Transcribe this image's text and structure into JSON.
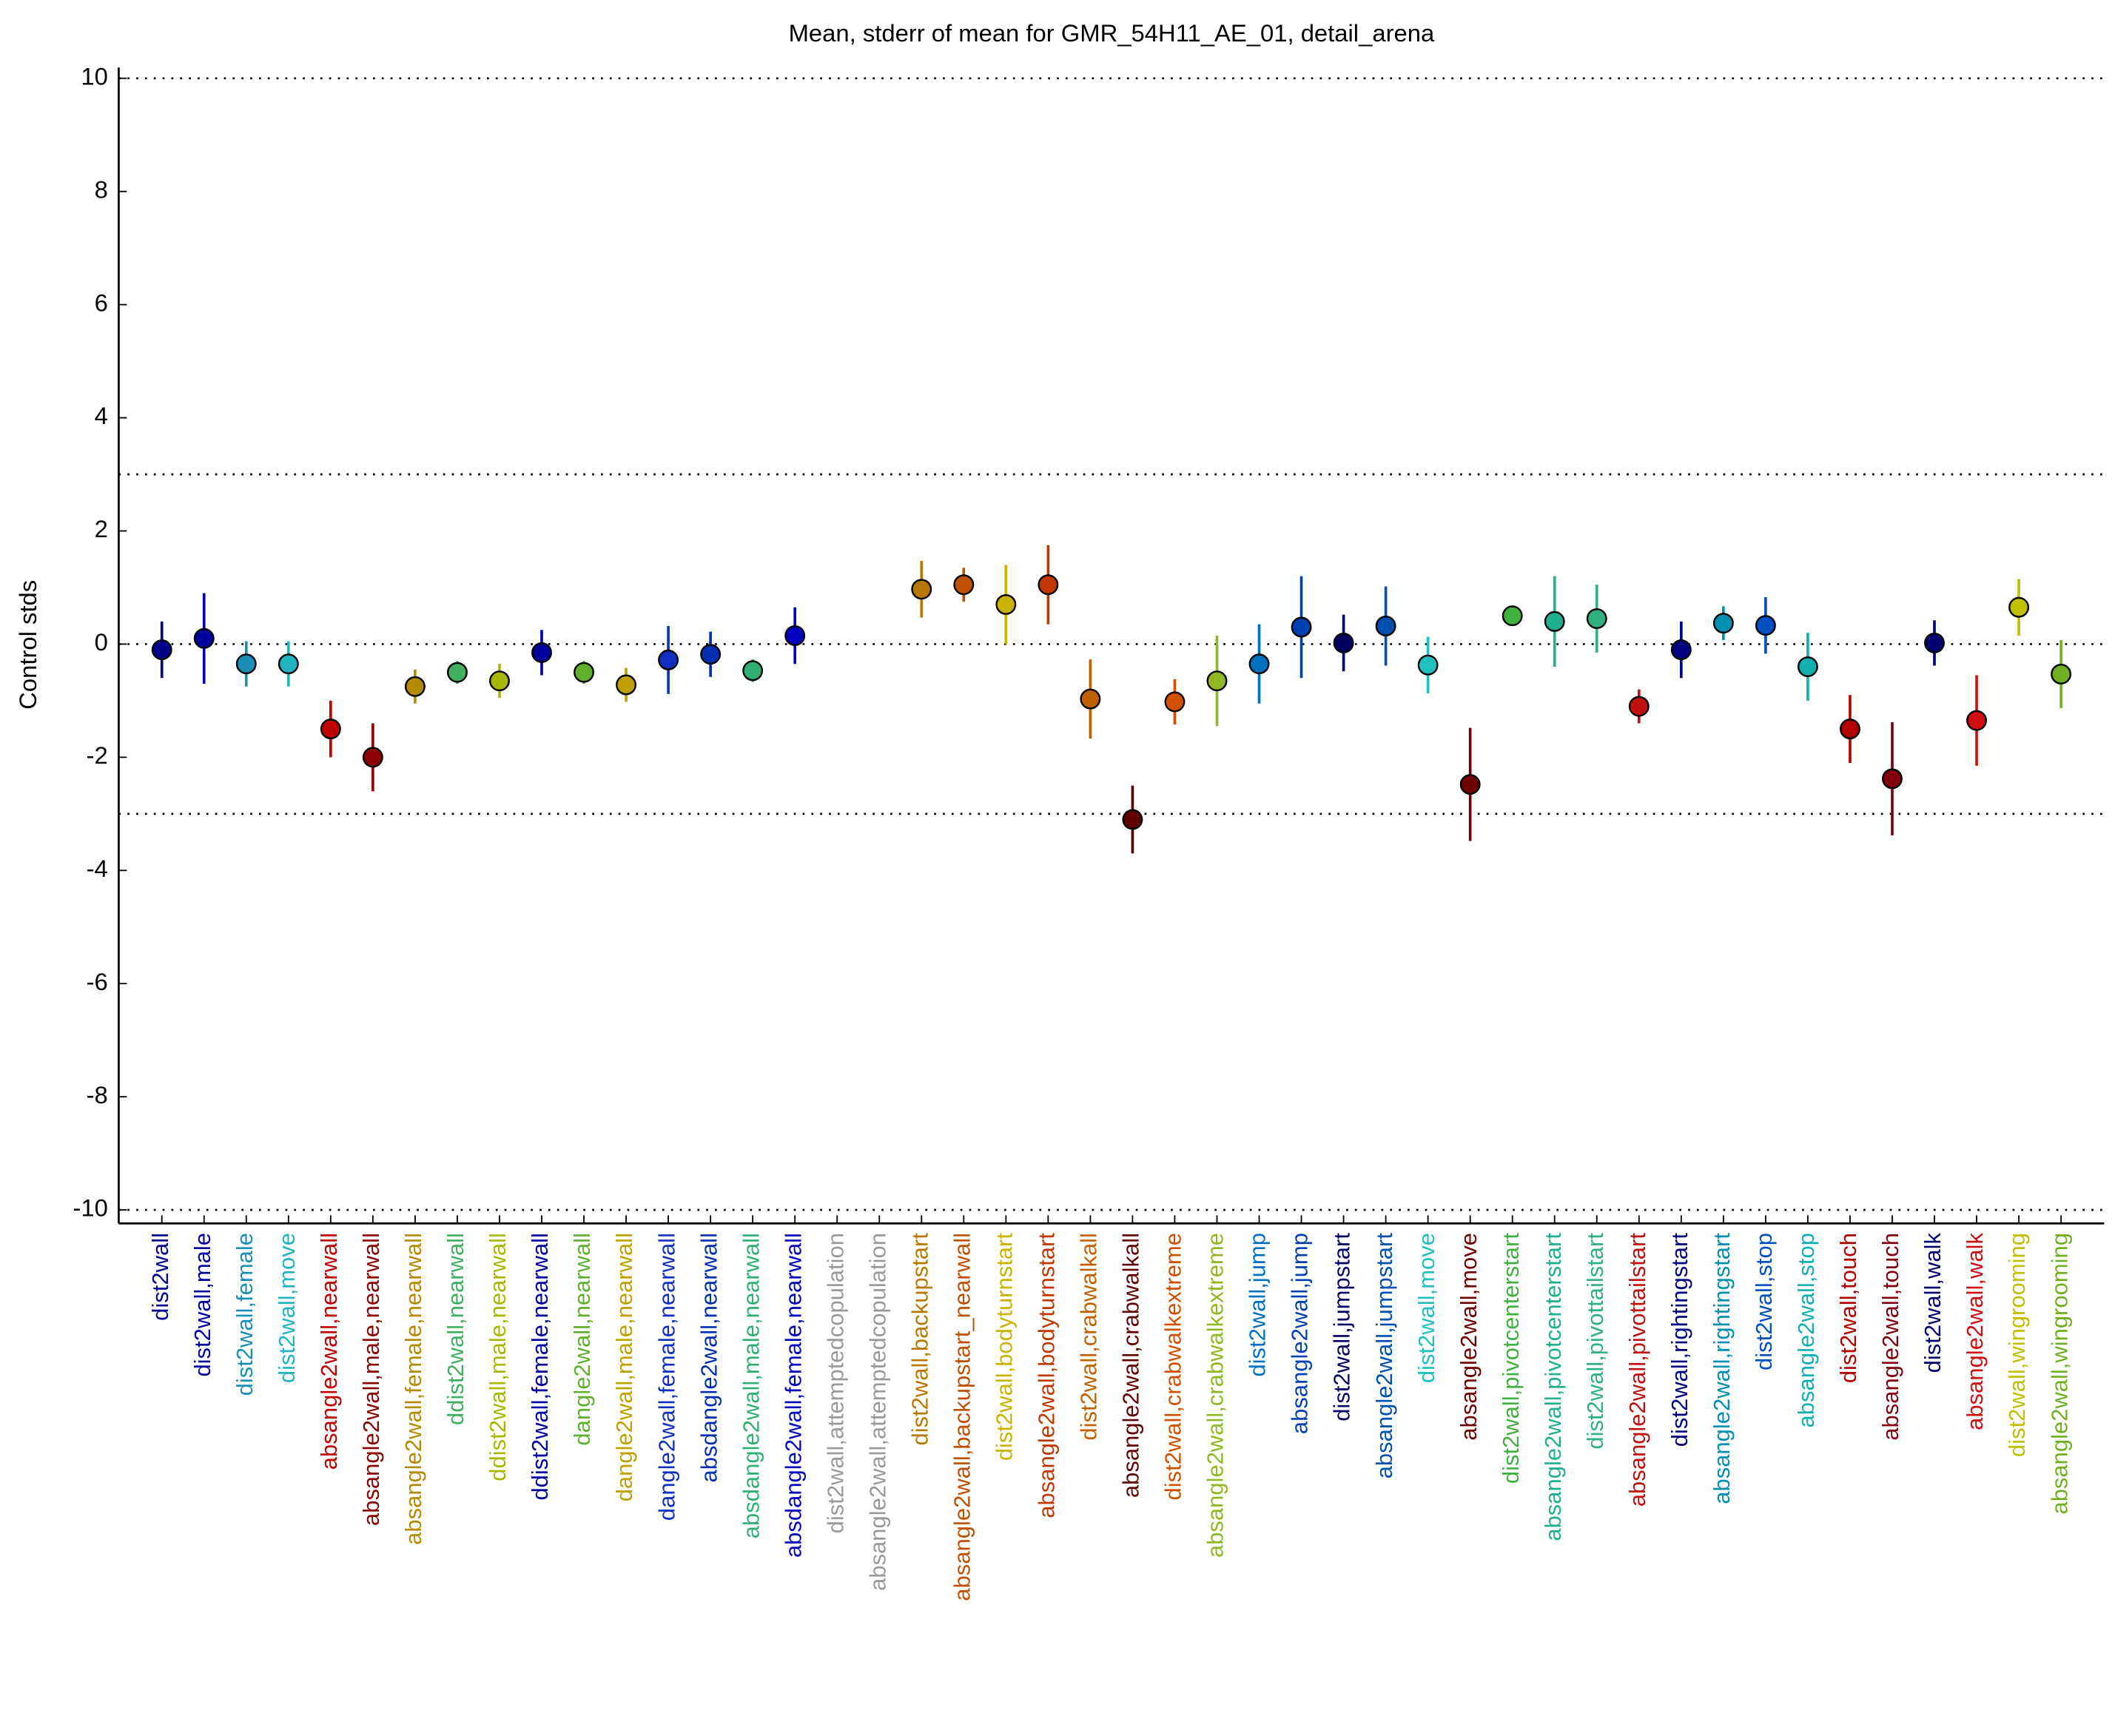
{
  "chart_data": {
    "type": "errorbar",
    "title": "Mean, stderr of mean for GMR_54H11_AE_01, detail_arena",
    "ylabel": "Control stds",
    "categories": [
      "dist2wall",
      "dist2wall,male",
      "dist2wall,female",
      "dist2wall,move",
      "absangle2wall,nearwall",
      "absangle2wall,male,nearwall",
      "absangle2wall,female,nearwall",
      "ddist2wall,nearwall",
      "ddist2wall,male,nearwall",
      "ddist2wall,female,nearwall",
      "dangle2wall,nearwall",
      "dangle2wall,male,nearwall",
      "dangle2wall,female,nearwall",
      "absdangle2wall,nearwall",
      "absdangle2wall,male,nearwall",
      "absdangle2wall,female,nearwall",
      "dist2wall,attemptedcopulation",
      "absangle2wall,attemptedcopulation",
      "dist2wall,backupstart",
      "absangle2wall,backupstart_nearwall",
      "dist2wall,bodyturnstart",
      "absangle2wall,bodyturnstart",
      "dist2wall,crabwalkall",
      "absangle2wall,crabwalkall",
      "dist2wall,crabwalkextreme",
      "absangle2wall,crabwalkextreme",
      "dist2wall,jump",
      "absangle2wall,jump",
      "dist2wall,jumpstart",
      "absangle2wall,jumpstart",
      "dist2wall,move",
      "absangle2wall,move",
      "dist2wall,pivotcenterstart",
      "absangle2wall,pivotcenterstart",
      "dist2wall,pivottailstart",
      "absangle2wall,pivottailstart",
      "dist2wall,rightingstart",
      "absangle2wall,rightingstart",
      "dist2wall,stop",
      "absangle2wall,stop",
      "dist2wall,touch",
      "absangle2wall,touch",
      "dist2wall,walk",
      "absangle2wall,walk",
      "dist2wall,wingrooming",
      "absangle2wall,wingrooming"
    ],
    "values": [
      -0.1,
      0.1,
      -0.35,
      -0.35,
      -1.5,
      -2.0,
      -0.75,
      -0.5,
      -0.65,
      -0.15,
      -0.5,
      -0.72,
      -0.28,
      -0.18,
      -0.47,
      0.15,
      null,
      null,
      0.97,
      1.05,
      0.7,
      1.05,
      -0.97,
      -3.1,
      -1.02,
      -0.65,
      -0.35,
      0.3,
      0.02,
      0.32,
      -0.37,
      -2.48,
      0.5,
      0.4,
      0.45,
      -1.1,
      -0.1,
      0.37,
      0.33,
      -0.4,
      -1.5,
      -2.38,
      0.02,
      -1.35,
      0.65,
      -0.53
    ],
    "errors": [
      0.5,
      0.8,
      0.4,
      0.4,
      0.5,
      0.6,
      0.3,
      0.2,
      0.3,
      0.4,
      0.2,
      0.3,
      0.6,
      0.4,
      0.2,
      0.5,
      null,
      null,
      0.5,
      0.3,
      0.7,
      0.7,
      0.7,
      0.6,
      0.4,
      0.8,
      0.7,
      0.9,
      0.5,
      0.7,
      0.5,
      1.0,
      0.1,
      0.8,
      0.6,
      0.3,
      0.5,
      0.3,
      0.5,
      0.6,
      0.6,
      1.0,
      0.4,
      0.8,
      0.5,
      0.6
    ],
    "colors": [
      "#00008f",
      "#00009f",
      "#1a8fb5",
      "#20b5c0",
      "#c00000",
      "#8b0000",
      "#b38a00",
      "#40b060",
      "#a8b800",
      "#0000a0",
      "#60b030",
      "#c0a000",
      "#1030c0",
      "#0030b0",
      "#30b070",
      "#0000c0",
      "#999999",
      "#999999",
      "#b87800",
      "#c05000",
      "#c8b400",
      "#c03800",
      "#c06000",
      "#600000",
      "#d05000",
      "#90b820",
      "#0070c0",
      "#0040b0",
      "#000060",
      "#0050b0",
      "#20c0c0",
      "#700000",
      "#40b040",
      "#20b090",
      "#30b080",
      "#c01010",
      "#000080",
      "#0090b0",
      "#0050c0",
      "#10b0b0",
      "#b00000",
      "#800010",
      "#000070",
      "#d01010",
      "#c0c000",
      "#70b020"
    ],
    "ylim": [
      -10,
      10
    ],
    "yticks": [
      -10,
      -8,
      -6,
      -4,
      -2,
      0,
      2,
      4,
      6,
      8,
      10
    ],
    "reference_lines": [
      10,
      3,
      0,
      -3,
      -10
    ]
  }
}
